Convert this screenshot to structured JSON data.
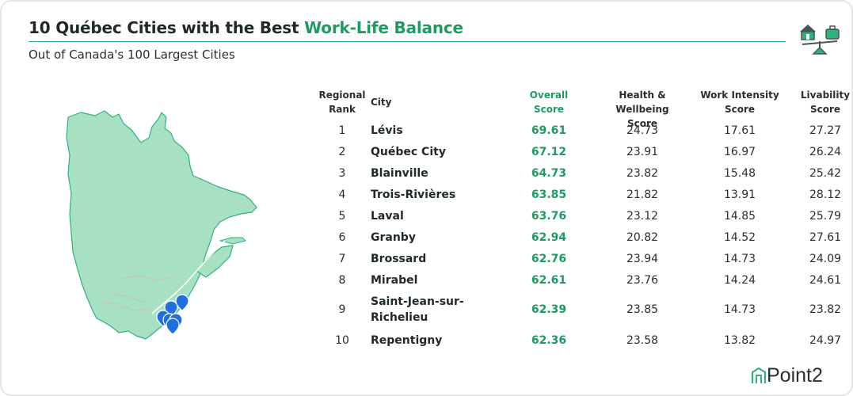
{
  "header": {
    "title_prefix": "10 Québec Cities with the Best ",
    "title_accent": "Work-Life Balance",
    "subtitle": "Out of Canada's 100 Largest Cities"
  },
  "brand": {
    "name": "Point2"
  },
  "colors": {
    "accent": "#1e9a63",
    "map_fill": "#a7e0c3",
    "map_stroke": "#2fb37a",
    "pin": "#1f6fe0"
  },
  "icons": [
    "home-icon",
    "briefcase-icon",
    "balance-scale-icon",
    "map-pin-icon",
    "point2-logo-icon"
  ],
  "chart_data": {
    "type": "table",
    "columns": [
      {
        "key": "rank",
        "label_line1": "Regional",
        "label_line2": "Rank"
      },
      {
        "key": "city",
        "label_line1": "City",
        "label_line2": ""
      },
      {
        "key": "overall",
        "label_line1": "Overall",
        "label_line2": "Score"
      },
      {
        "key": "health",
        "label_line1": "Health & Wellbeing",
        "label_line2": "Score"
      },
      {
        "key": "work",
        "label_line1": "Work Intensity",
        "label_line2": "Score"
      },
      {
        "key": "livability",
        "label_line1": "Livability",
        "label_line2": "Score"
      }
    ],
    "rows": [
      {
        "rank": "1",
        "city": "Lévis",
        "overall": "69.61",
        "health": "24.73",
        "work": "17.61",
        "livability": "27.27"
      },
      {
        "rank": "2",
        "city": "Québec City",
        "overall": "67.12",
        "health": "23.91",
        "work": "16.97",
        "livability": "26.24"
      },
      {
        "rank": "3",
        "city": "Blainville",
        "overall": "64.73",
        "health": "23.82",
        "work": "15.48",
        "livability": "25.42"
      },
      {
        "rank": "4",
        "city": "Trois-Rivières",
        "overall": "63.85",
        "health": "21.82",
        "work": "13.91",
        "livability": "28.12"
      },
      {
        "rank": "5",
        "city": "Laval",
        "overall": "63.76",
        "health": "23.12",
        "work": "14.85",
        "livability": "25.79"
      },
      {
        "rank": "6",
        "city": "Granby",
        "overall": "62.94",
        "health": "20.82",
        "work": "14.52",
        "livability": "27.61"
      },
      {
        "rank": "7",
        "city": "Brossard",
        "overall": "62.76",
        "health": "23.94",
        "work": "14.73",
        "livability": "24.09"
      },
      {
        "rank": "8",
        "city": "Mirabel",
        "overall": "62.61",
        "health": "23.76",
        "work": "14.24",
        "livability": "24.61"
      },
      {
        "rank": "9",
        "city": "Saint-Jean-sur-Richelieu",
        "overall": "62.39",
        "health": "23.85",
        "work": "14.73",
        "livability": "23.82"
      },
      {
        "rank": "10",
        "city": "Repentigny",
        "overall": "62.36",
        "health": "23.58",
        "work": "13.82",
        "livability": "24.97"
      }
    ]
  }
}
